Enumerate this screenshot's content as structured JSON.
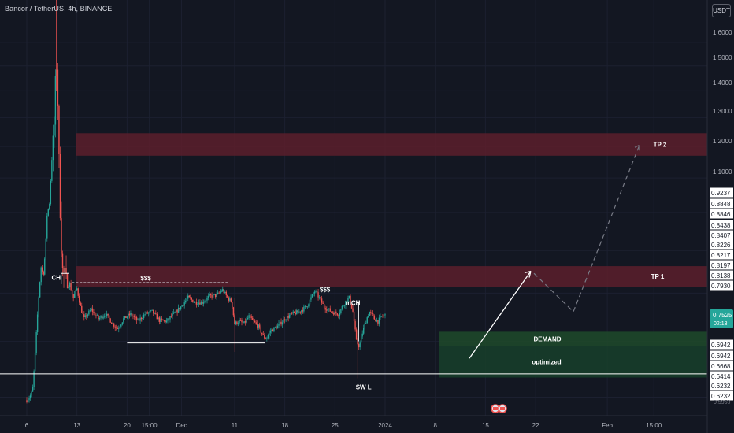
{
  "header": {
    "symbol_line": "Bancor / TetherUS, 4h, BINANCE",
    "currency": "USDT"
  },
  "chart_data": {
    "type": "candlestick",
    "symbol": "Bancor / TetherUS",
    "interval": "4h",
    "exchange": "BINANCE",
    "yscale": "log",
    "ylim": [
      0.57,
      1.8
    ],
    "x_ticks": [
      "6",
      "13",
      "20",
      "15:00",
      "Dec",
      "11",
      "18",
      "25",
      "2024",
      "8",
      "15",
      "22",
      "Feb",
      "15:00"
    ],
    "y_ticks": [
      "1.6000",
      "1.5000",
      "1.4000",
      "1.3000",
      "1.2000",
      "1.1000",
      "0.9237",
      "0.8848",
      "0.8846",
      "0.8438",
      "0.8407",
      "0.8226",
      "0.8217",
      "0.8197",
      "0.8138",
      "0.7930",
      "0.6942",
      "0.6942",
      "0.6668",
      "0.6414",
      "0.6232",
      "0.6232"
    ],
    "partial_tick": "0.5950",
    "current_price": {
      "value": "0.7525",
      "countdown": "02:13",
      "color": "#26a69a"
    },
    "price_path": [
      [
        6,
        0.595
      ],
      [
        6.4,
        0.6
      ],
      [
        6.8,
        0.61
      ],
      [
        7.1,
        0.66
      ],
      [
        7.4,
        0.73
      ],
      [
        7.7,
        0.8
      ],
      [
        8.0,
        0.86
      ],
      [
        8.3,
        0.84
      ],
      [
        8.6,
        0.9
      ],
      [
        8.9,
        1.02
      ],
      [
        9.1,
        1.0
      ],
      [
        9.3,
        1.08
      ],
      [
        9.5,
        1.16
      ],
      [
        9.7,
        1.22
      ],
      [
        9.9,
        1.3
      ],
      [
        10.05,
        1.48
      ],
      [
        10.15,
        1.52
      ],
      [
        10.3,
        1.4
      ],
      [
        10.45,
        1.2
      ],
      [
        10.6,
        1.05
      ],
      [
        10.8,
        0.93
      ],
      [
        11.0,
        0.85
      ],
      [
        11.3,
        0.84
      ],
      [
        11.6,
        0.815
      ],
      [
        12.0,
        0.82
      ],
      [
        12.5,
        0.79
      ],
      [
        13,
        0.81
      ],
      [
        13.5,
        0.77
      ],
      [
        14,
        0.745
      ],
      [
        15,
        0.765
      ],
      [
        16,
        0.745
      ],
      [
        17,
        0.755
      ],
      [
        18,
        0.735
      ],
      [
        18.7,
        0.725
      ],
      [
        19.5,
        0.745
      ],
      [
        20.5,
        0.755
      ],
      [
        21.5,
        0.74
      ],
      [
        22.5,
        0.755
      ],
      [
        23.5,
        0.76
      ],
      [
        24.5,
        0.742
      ],
      [
        25.5,
        0.74
      ],
      [
        26.5,
        0.755
      ],
      [
        27.5,
        0.77
      ],
      [
        28.5,
        0.79
      ],
      [
        29.5,
        0.78
      ],
      [
        30.5,
        0.78
      ],
      [
        31.5,
        0.793
      ],
      [
        32.5,
        0.795
      ],
      [
        33.3,
        0.808
      ],
      [
        34.0,
        0.79
      ],
      [
        34.6,
        0.78
      ],
      [
        35.0,
        0.735
      ],
      [
        35.6,
        0.74
      ],
      [
        36.3,
        0.735
      ],
      [
        37.0,
        0.75
      ],
      [
        37.6,
        0.74
      ],
      [
        38.3,
        0.73
      ],
      [
        39.0,
        0.71
      ],
      [
        39.4,
        0.705
      ],
      [
        40.0,
        0.72
      ],
      [
        41.0,
        0.73
      ],
      [
        42.0,
        0.745
      ],
      [
        43.0,
        0.755
      ],
      [
        44.0,
        0.76
      ],
      [
        45.0,
        0.77
      ],
      [
        45.7,
        0.79
      ],
      [
        46.2,
        0.805
      ],
      [
        46.8,
        0.79
      ],
      [
        47.5,
        0.77
      ],
      [
        48.5,
        0.76
      ],
      [
        49.5,
        0.755
      ],
      [
        50.0,
        0.77
      ],
      [
        50.5,
        0.782
      ],
      [
        51.0,
        0.79
      ],
      [
        51.5,
        0.76
      ],
      [
        52.0,
        0.7
      ],
      [
        52.4,
        0.69
      ],
      [
        52.8,
        0.715
      ],
      [
        53.3,
        0.74
      ],
      [
        53.8,
        0.76
      ],
      [
        54.5,
        0.745
      ],
      [
        55.0,
        0.74
      ],
      [
        55.5,
        0.75
      ],
      [
        56.0,
        0.7525
      ]
    ],
    "zones": [
      {
        "label": "TP 2",
        "from": 1.17,
        "to": 1.245,
        "type": "supply"
      },
      {
        "label": "TP 1",
        "from": 0.8135,
        "to": 0.862,
        "type": "supply"
      },
      {
        "label": "DEMAND",
        "from": 0.6905,
        "to": 0.719,
        "type": "demand"
      },
      {
        "label": "optimized",
        "from": 0.6335,
        "to": 0.6905,
        "type": "demand"
      }
    ],
    "lines": [
      {
        "label": "$$$",
        "price": 0.8235,
        "style": "dashed"
      },
      {
        "label": "$$$",
        "price": 0.798,
        "style": "dashed"
      },
      {
        "label": "CH",
        "price": 0.845,
        "style": "solid"
      },
      {
        "label": "mCH",
        "price": 0.781,
        "style": "solid"
      },
      {
        "label": "SW L",
        "price": 0.624,
        "style": "solid"
      },
      {
        "label": "",
        "price": 0.697,
        "style": "solid"
      },
      {
        "label": "",
        "price": 0.64,
        "style": "solid"
      }
    ],
    "annotations": [
      "$$$",
      "$$$",
      "CH",
      "mCH",
      "SW L",
      "TP 1",
      "TP 2",
      "DEMAND",
      "optimized"
    ],
    "colors": {
      "up": "#26a69a",
      "down": "#ef5350",
      "supply": "#5c1e2c",
      "demand": "#1e4a2a"
    }
  }
}
